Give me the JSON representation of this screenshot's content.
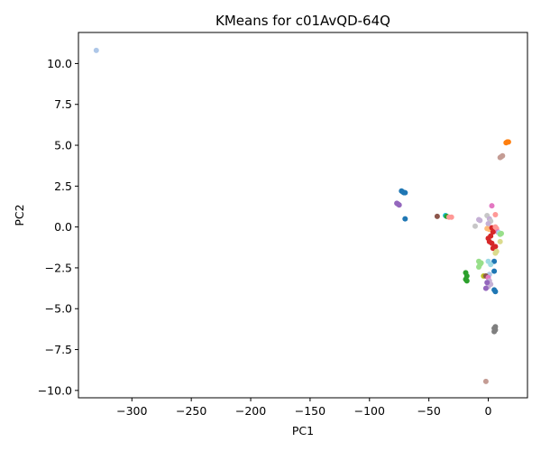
{
  "chart_data": {
    "type": "scatter",
    "title": "KMeans for c01AvQD-64Q",
    "xlabel": "PC1",
    "ylabel": "PC2",
    "xlim": [
      -345,
      33
    ],
    "ylim": [
      -10.45,
      11.9
    ],
    "grid": false,
    "xticks": [
      {
        "value": -300,
        "label": "−300"
      },
      {
        "value": -250,
        "label": "−250"
      },
      {
        "value": -200,
        "label": "−200"
      },
      {
        "value": -150,
        "label": "−150"
      },
      {
        "value": -100,
        "label": "−100"
      },
      {
        "value": -50,
        "label": "−50"
      },
      {
        "value": 0,
        "label": "0"
      }
    ],
    "yticks": [
      {
        "value": 10,
        "label": "10.0"
      },
      {
        "value": 7.5,
        "label": "7.5"
      },
      {
        "value": 5,
        "label": "5.0"
      },
      {
        "value": 2.5,
        "label": "2.5"
      },
      {
        "value": 0,
        "label": "0.0"
      },
      {
        "value": -2.5,
        "label": "−2.5"
      },
      {
        "value": -5,
        "label": "−5.0"
      },
      {
        "value": -7.5,
        "label": "−7.5"
      },
      {
        "value": -10,
        "label": "−10.0"
      }
    ],
    "points": [
      {
        "x": -330,
        "y": 10.8,
        "color": "#aec7e8"
      },
      {
        "x": 16,
        "y": 5.2,
        "color": "#ff7f0e"
      },
      {
        "x": 15,
        "y": 5.15,
        "color": "#ff7f0e"
      },
      {
        "x": 17,
        "y": 5.2,
        "color": "#ff7f0e"
      },
      {
        "x": 11,
        "y": 4.3,
        "color": "#c49c94"
      },
      {
        "x": 10,
        "y": 4.25,
        "color": "#c49c94"
      },
      {
        "x": 12,
        "y": 4.35,
        "color": "#c49c94"
      },
      {
        "x": -72,
        "y": 2.15,
        "color": "#1f77b4"
      },
      {
        "x": -71,
        "y": 2.1,
        "color": "#1f77b4"
      },
      {
        "x": -70,
        "y": 2.1,
        "color": "#1f77b4"
      },
      {
        "x": -73,
        "y": 2.2,
        "color": "#1f77b4"
      },
      {
        "x": -76,
        "y": 1.4,
        "color": "#9467bd"
      },
      {
        "x": -77,
        "y": 1.45,
        "color": "#9467bd"
      },
      {
        "x": -75,
        "y": 1.35,
        "color": "#9467bd"
      },
      {
        "x": -70,
        "y": 0.5,
        "color": "#1f77b4"
      },
      {
        "x": -43,
        "y": 0.65,
        "color": "#8c564b"
      },
      {
        "x": -36,
        "y": 0.7,
        "color": "#17becf"
      },
      {
        "x": -35,
        "y": 0.65,
        "color": "#2ca02c"
      },
      {
        "x": -33,
        "y": 0.6,
        "color": "#ff9896"
      },
      {
        "x": -31,
        "y": 0.6,
        "color": "#ff9896"
      },
      {
        "x": -11,
        "y": 0.05,
        "color": "#c7c7c7"
      },
      {
        "x": -7,
        "y": 0.4,
        "color": "#c5b0d5"
      },
      {
        "x": -8,
        "y": 0.45,
        "color": "#c5b0d5"
      },
      {
        "x": -1,
        "y": 0.7,
        "color": "#c7c7c7"
      },
      {
        "x": 1,
        "y": 0.5,
        "color": "#c5b0d5"
      },
      {
        "x": 3,
        "y": 1.3,
        "color": "#e377c2"
      },
      {
        "x": 6,
        "y": 0.75,
        "color": "#ff9896"
      },
      {
        "x": 2,
        "y": 0.35,
        "color": "#c7c7c7"
      },
      {
        "x": 0,
        "y": 0.2,
        "color": "#c5b0d5"
      },
      {
        "x": -1,
        "y": -0.1,
        "color": "#ffbb78"
      },
      {
        "x": 1,
        "y": -0.15,
        "color": "#ffbb78"
      },
      {
        "x": 3,
        "y": -0.05,
        "color": "#d62728"
      },
      {
        "x": 5,
        "y": -0.2,
        "color": "#d62728"
      },
      {
        "x": 6,
        "y": 0.0,
        "color": "#ff9896"
      },
      {
        "x": 7,
        "y": -0.1,
        "color": "#ff9896"
      },
      {
        "x": 8,
        "y": -0.3,
        "color": "#e377c2"
      },
      {
        "x": 9,
        "y": -0.35,
        "color": "#9edae5"
      },
      {
        "x": 10,
        "y": -0.45,
        "color": "#98df8a"
      },
      {
        "x": 11,
        "y": -0.4,
        "color": "#98df8a"
      },
      {
        "x": 10,
        "y": -0.9,
        "color": "#dbdb8d"
      },
      {
        "x": 4,
        "y": -0.3,
        "color": "#d62728"
      },
      {
        "x": 2,
        "y": -0.55,
        "color": "#d62728"
      },
      {
        "x": 0,
        "y": -0.7,
        "color": "#d62728"
      },
      {
        "x": 1,
        "y": -0.9,
        "color": "#d62728"
      },
      {
        "x": 3,
        "y": -1.0,
        "color": "#d62728"
      },
      {
        "x": 4,
        "y": -1.3,
        "color": "#d62728"
      },
      {
        "x": 6,
        "y": -1.2,
        "color": "#d62728"
      },
      {
        "x": 7,
        "y": -1.5,
        "color": "#dbdb8d"
      },
      {
        "x": 6,
        "y": -1.6,
        "color": "#dbdb8d"
      },
      {
        "x": 5,
        "y": -2.1,
        "color": "#1f77b4"
      },
      {
        "x": 5,
        "y": -2.7,
        "color": "#1f77b4"
      },
      {
        "x": 0,
        "y": -2.1,
        "color": "#9edae5"
      },
      {
        "x": 2,
        "y": -2.3,
        "color": "#9edae5"
      },
      {
        "x": 1,
        "y": -2.9,
        "color": "#aec7e8"
      },
      {
        "x": -8,
        "y": -2.1,
        "color": "#98df8a"
      },
      {
        "x": -7,
        "y": -2.3,
        "color": "#98df8a"
      },
      {
        "x": -8,
        "y": -2.45,
        "color": "#98df8a"
      },
      {
        "x": -6,
        "y": -2.2,
        "color": "#98df8a"
      },
      {
        "x": -19,
        "y": -2.8,
        "color": "#2ca02c"
      },
      {
        "x": -18,
        "y": -3.0,
        "color": "#2ca02c"
      },
      {
        "x": -19,
        "y": -3.2,
        "color": "#2ca02c"
      },
      {
        "x": -18,
        "y": -3.3,
        "color": "#2ca02c"
      },
      {
        "x": -4,
        "y": -3.0,
        "color": "#bcbd22"
      },
      {
        "x": -2,
        "y": -3.0,
        "color": "#8c564b"
      },
      {
        "x": 0,
        "y": -3.1,
        "color": "#e377c2"
      },
      {
        "x": 1,
        "y": -3.3,
        "color": "#c5b0d5"
      },
      {
        "x": 2,
        "y": -3.5,
        "color": "#c5b0d5"
      },
      {
        "x": 0,
        "y": -3.65,
        "color": "#c5b0d5"
      },
      {
        "x": -1,
        "y": -3.4,
        "color": "#9467bd"
      },
      {
        "x": -2,
        "y": -3.75,
        "color": "#9467bd"
      },
      {
        "x": 5,
        "y": -3.85,
        "color": "#1f77b4"
      },
      {
        "x": 6,
        "y": -3.95,
        "color": "#1f77b4"
      },
      {
        "x": 6,
        "y": -6.1,
        "color": "#7f7f7f"
      },
      {
        "x": 5,
        "y": -6.2,
        "color": "#7f7f7f"
      },
      {
        "x": 6,
        "y": -6.3,
        "color": "#7f7f7f"
      },
      {
        "x": 5,
        "y": -6.4,
        "color": "#7f7f7f"
      },
      {
        "x": -2,
        "y": -9.45,
        "color": "#c49c94"
      }
    ]
  }
}
